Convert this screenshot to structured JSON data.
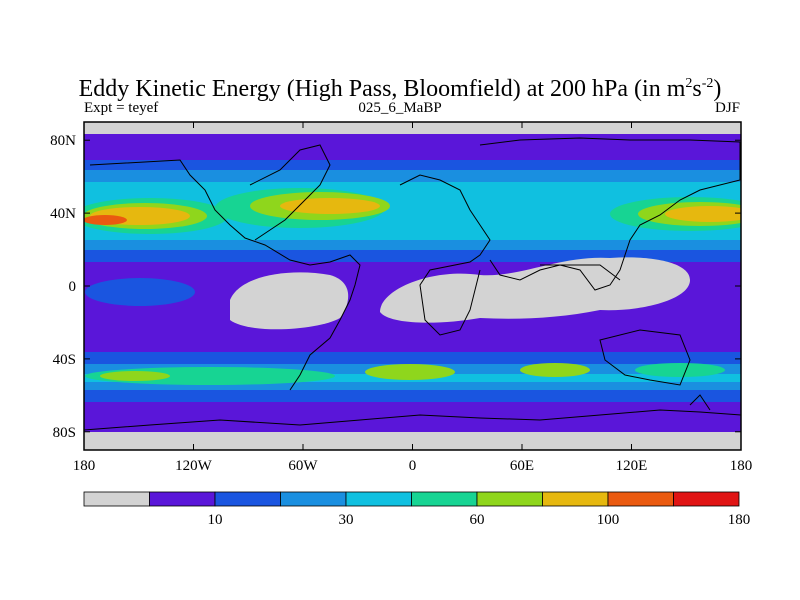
{
  "title": {
    "prefix": "Eddy Kinetic Energy (High Pass, Bloomfield) at 200 hPa (in m",
    "sup1": "2",
    "mid": "s",
    "sup2": "-2",
    "suffix": ")"
  },
  "subtitle_left": "Expt = teyef",
  "subtitle_center": "025_6_MaBP",
  "subtitle_right": "DJF",
  "chart_data": {
    "type": "heatmap",
    "title": "Eddy Kinetic Energy (High Pass, Bloomfield) at 200 hPa (in m2s-2)",
    "x_ticks": [
      {
        "value": -180,
        "label": "180"
      },
      {
        "value": -120,
        "label": "120W"
      },
      {
        "value": -60,
        "label": "60W"
      },
      {
        "value": 0,
        "label": "0"
      },
      {
        "value": 60,
        "label": "60E"
      },
      {
        "value": 120,
        "label": "120E"
      },
      {
        "value": 180,
        "label": "180"
      }
    ],
    "y_ticks": [
      {
        "value": 80,
        "label": "80N"
      },
      {
        "value": 40,
        "label": "40N"
      },
      {
        "value": 0,
        "label": "0"
      },
      {
        "value": -40,
        "label": "40S"
      },
      {
        "value": -80,
        "label": "80S"
      }
    ],
    "xlim": [
      -180,
      180
    ],
    "ylim": [
      -90,
      90
    ],
    "levels": [
      {
        "color": "#d3d3d3",
        "label": ""
      },
      {
        "color": "#5a16d9",
        "label": "10"
      },
      {
        "color": "#1a55e0",
        "label": ""
      },
      {
        "color": "#1a8fe0",
        "label": "30"
      },
      {
        "color": "#10c0e0",
        "label": ""
      },
      {
        "color": "#17d493",
        "label": "60"
      },
      {
        "color": "#8fd61c",
        "label": ""
      },
      {
        "color": "#e6b80f",
        "label": "100"
      },
      {
        "color": "#ea5a10",
        "label": ""
      },
      {
        "color": "#e01414",
        "label": "180"
      }
    ]
  }
}
